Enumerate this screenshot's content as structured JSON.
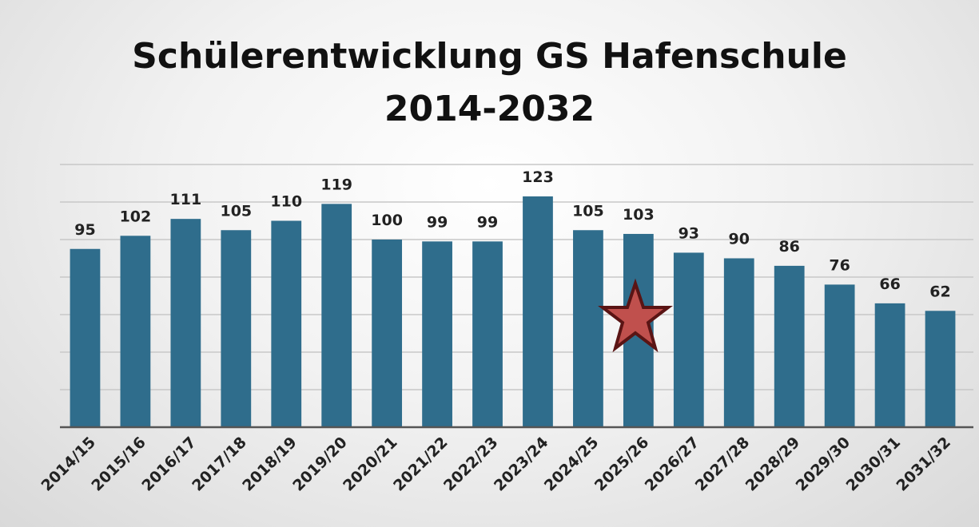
{
  "chart_data": {
    "type": "bar",
    "title": "Schülerentwicklung GS Hafenschule\n2014-2032",
    "categories": [
      "2014/15",
      "2015/16",
      "2016/17",
      "2017/18",
      "2018/19",
      "2019/20",
      "2020/21",
      "2021/22",
      "2022/23",
      "2023/24",
      "2024/25",
      "2025/26",
      "2026/27",
      "2027/28",
      "2028/29",
      "2029/30",
      "2030/31",
      "2031/32"
    ],
    "values": [
      95,
      102,
      111,
      105,
      110,
      119,
      100,
      99,
      99,
      123,
      105,
      103,
      93,
      90,
      86,
      76,
      66,
      62
    ],
    "color": "#2f6d8c",
    "ylim": [
      0,
      140
    ],
    "yticks": [
      0,
      20,
      40,
      60,
      80,
      100,
      120,
      140
    ],
    "grid": true
  }
}
